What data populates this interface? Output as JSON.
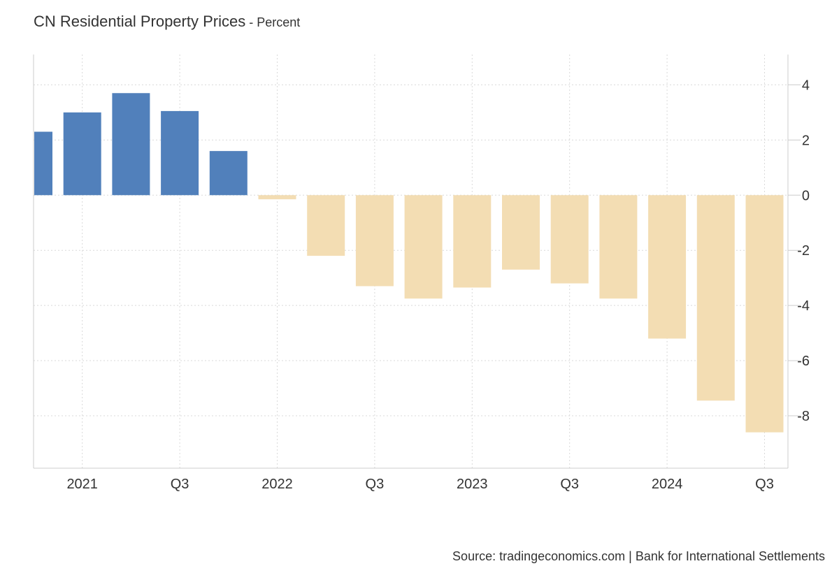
{
  "title": "CN Residential Property Prices",
  "subtitle_sep": " - ",
  "subtitle": "Percent",
  "source": "Source: tradingeconomics.com | Bank for International Settlements",
  "colors": {
    "positive": "#5180bb",
    "negative": "#f3ddb3",
    "grid": "#d9d9d9",
    "axis": "#cccccc"
  },
  "chart_data": {
    "type": "bar",
    "categories": [
      "2020 Q4",
      "2021 Q1",
      "2021 Q2",
      "2021 Q3",
      "2021 Q4",
      "2022 Q1",
      "2022 Q2",
      "2022 Q3",
      "2022 Q4",
      "2023 Q1",
      "2023 Q2",
      "2023 Q3",
      "2023 Q4",
      "2024 Q1",
      "2024 Q2",
      "2024 Q3"
    ],
    "values": [
      2.3,
      3.0,
      3.7,
      3.05,
      1.6,
      -0.15,
      -2.2,
      -3.3,
      -3.75,
      -3.35,
      -2.7,
      -3.2,
      -3.75,
      -5.2,
      -7.45,
      -8.6
    ],
    "x_tick_labels": [
      {
        "label": "2021",
        "index": 1
      },
      {
        "label": "Q3",
        "index": 3
      },
      {
        "label": "2022",
        "index": 5
      },
      {
        "label": "Q3",
        "index": 7
      },
      {
        "label": "2023",
        "index": 9
      },
      {
        "label": "Q3",
        "index": 11
      },
      {
        "label": "2024",
        "index": 13
      },
      {
        "label": "Q3",
        "index": 15
      }
    ],
    "y_ticks": [
      4,
      2,
      0,
      -2,
      -4,
      -6,
      -8
    ],
    "ylim": [
      -9.9,
      5.1
    ],
    "grid": true,
    "y_axis_side": "right",
    "legend": "none"
  }
}
